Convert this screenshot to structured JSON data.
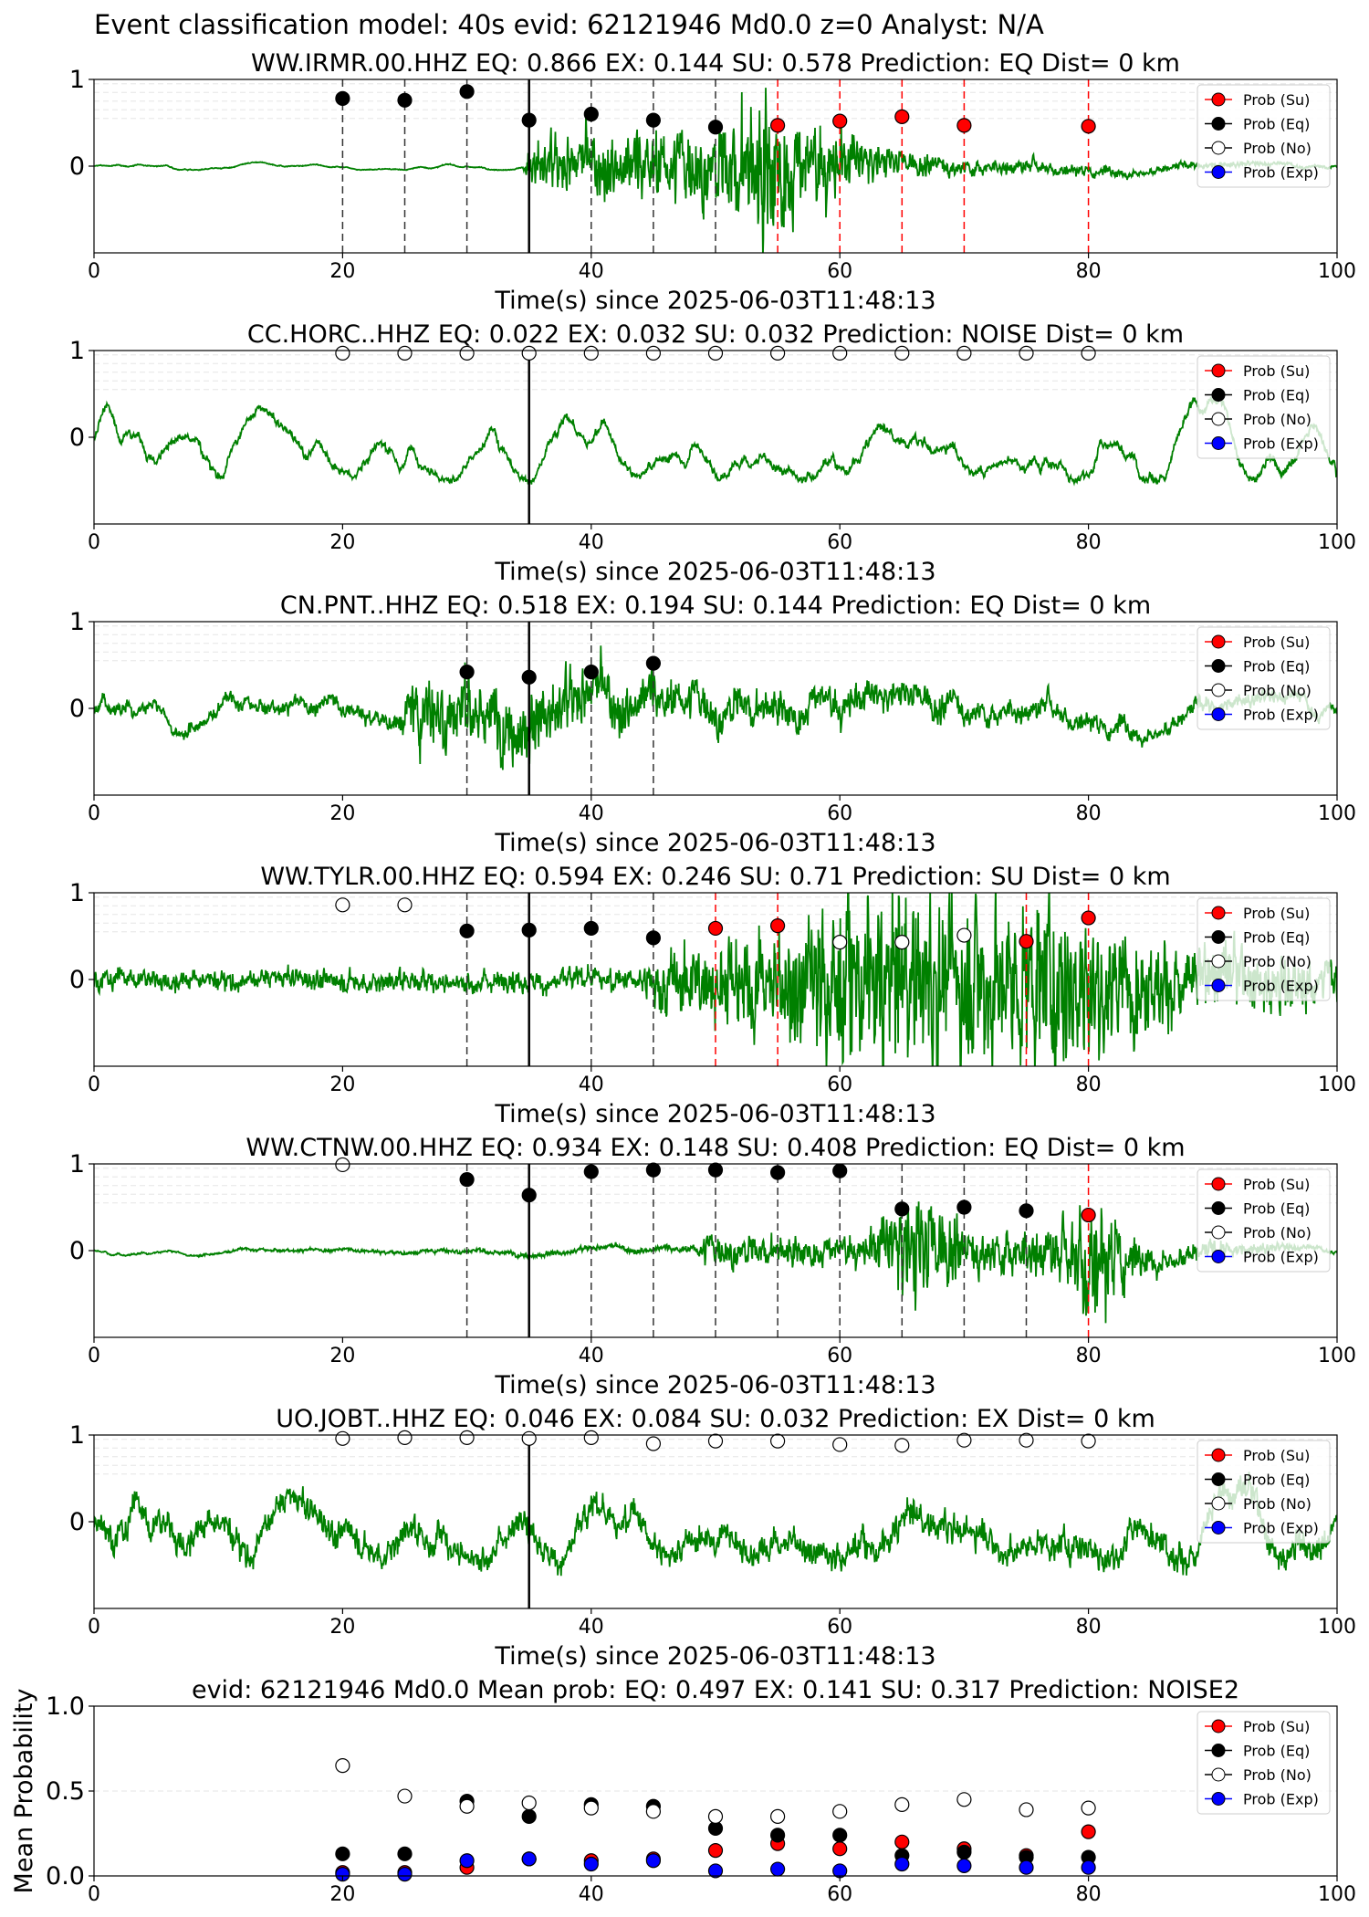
{
  "suptitle": "Event classification model: 40s evid: 62121946 Md0.0 z=0 Analyst: N/A",
  "colors": {
    "waveform": "#008000",
    "su": "#ff0000",
    "eq": "#000000",
    "no": "#ffffff",
    "exp": "#0000ff",
    "pick_line": "#000000",
    "su_line": "#ff0000"
  },
  "legend": {
    "placement": "top-right",
    "entries": [
      "Prob (Su)",
      "Prob (Eq)",
      "Prob (No)",
      "Prob (Exp)"
    ]
  },
  "chart_data": [
    {
      "type": "line",
      "title": "WW.IRMR.00.HHZ   EQ: 0.866  EX: 0.144  SU: 0.578   Prediction: EQ    Dist= 0 km",
      "xlabel": "Time(s) since 2025-06-03T11:48:13",
      "xlim": [
        0,
        100
      ],
      "xticks": [
        0,
        20,
        40,
        60,
        80,
        100
      ],
      "ylim": [
        -1,
        1
      ],
      "yticks": [
        0,
        1
      ],
      "origin_line": 35,
      "waveform_profile": [
        {
          "t": 0,
          "amp": 0.04,
          "smooth": 0.9
        },
        {
          "t": 34.5,
          "amp": 0.04,
          "smooth": 0.9
        },
        {
          "t": 35,
          "amp": 0.3,
          "smooth": 0.2
        },
        {
          "t": 50,
          "amp": 0.45,
          "smooth": 0.2
        },
        {
          "t": 54,
          "amp": 0.9,
          "smooth": 0.2
        },
        {
          "t": 57,
          "amp": 0.5,
          "smooth": 0.2
        },
        {
          "t": 66,
          "amp": 0.18,
          "smooth": 0.5
        },
        {
          "t": 100,
          "amp": 0.05,
          "smooth": 0.8
        }
      ],
      "series": [
        {
          "name": "Prob (Su)",
          "key": "su",
          "x": [
            55,
            60,
            65,
            70,
            80
          ],
          "y": [
            0.47,
            0.52,
            0.57,
            0.47,
            0.46
          ]
        },
        {
          "name": "Prob (Eq)",
          "key": "eq",
          "x": [
            20,
            25,
            30,
            35,
            40,
            45,
            50
          ],
          "y": [
            0.78,
            0.76,
            0.86,
            0.53,
            0.6,
            0.53,
            0.45
          ]
        },
        {
          "name": "Prob (No)",
          "key": "no",
          "x": [],
          "y": []
        },
        {
          "name": "Prob (Exp)",
          "key": "exp",
          "x": [],
          "y": []
        }
      ],
      "pick_lines": [
        {
          "x": 20,
          "kind": "eq"
        },
        {
          "x": 25,
          "kind": "eq"
        },
        {
          "x": 30,
          "kind": "eq"
        },
        {
          "x": 40,
          "kind": "eq"
        },
        {
          "x": 45,
          "kind": "eq"
        },
        {
          "x": 50,
          "kind": "eq"
        },
        {
          "x": 55,
          "kind": "su"
        },
        {
          "x": 60,
          "kind": "su"
        },
        {
          "x": 65,
          "kind": "su"
        },
        {
          "x": 70,
          "kind": "su"
        },
        {
          "x": 80,
          "kind": "su"
        }
      ]
    },
    {
      "type": "line",
      "title": "CC.HORC..HHZ   EQ: 0.022  EX: 0.032  SU: 0.032   Prediction: NOISE    Dist= 0 km",
      "xlabel": "Time(s) since 2025-06-03T11:48:13",
      "xlim": [
        0,
        100
      ],
      "xticks": [
        0,
        20,
        40,
        60,
        80,
        100
      ],
      "ylim": [
        -1,
        1
      ],
      "yticks": [
        0,
        1
      ],
      "origin_line": 35,
      "waveform_profile": [
        {
          "t": 0,
          "amp": 0.45,
          "smooth": 0.92
        },
        {
          "t": 100,
          "amp": 0.45,
          "smooth": 0.92
        }
      ],
      "series": [
        {
          "name": "Prob (Su)",
          "key": "su",
          "x": [],
          "y": []
        },
        {
          "name": "Prob (Eq)",
          "key": "eq",
          "x": [],
          "y": []
        },
        {
          "name": "Prob (No)",
          "key": "no",
          "x": [
            20,
            25,
            30,
            35,
            40,
            45,
            50,
            55,
            60,
            65,
            70,
            75,
            80
          ],
          "y": [
            0.97,
            0.97,
            0.97,
            0.97,
            0.97,
            0.97,
            0.97,
            0.97,
            0.97,
            0.97,
            0.97,
            0.97,
            0.97
          ]
        },
        {
          "name": "Prob (Exp)",
          "key": "exp",
          "x": [],
          "y": []
        }
      ],
      "pick_lines": []
    },
    {
      "type": "line",
      "title": "CN.PNT..HHZ   EQ: 0.518  EX: 0.194  SU: 0.144   Prediction: EQ    Dist= 0 km",
      "xlabel": "Time(s) since 2025-06-03T11:48:13",
      "xlim": [
        0,
        100
      ],
      "xticks": [
        0,
        20,
        40,
        60,
        80,
        100
      ],
      "ylim": [
        -1,
        1
      ],
      "yticks": [
        0,
        1
      ],
      "origin_line": 35,
      "waveform_profile": [
        {
          "t": 0,
          "amp": 0.35,
          "smooth": 0.85
        },
        {
          "t": 24,
          "amp": 0.35,
          "smooth": 0.8
        },
        {
          "t": 26,
          "amp": 0.55,
          "smooth": 0.4
        },
        {
          "t": 37,
          "amp": 0.5,
          "smooth": 0.4
        },
        {
          "t": 46,
          "amp": 0.45,
          "smooth": 0.6
        },
        {
          "t": 100,
          "amp": 0.3,
          "smooth": 0.85
        }
      ],
      "series": [
        {
          "name": "Prob (Su)",
          "key": "su",
          "x": [],
          "y": []
        },
        {
          "name": "Prob (Eq)",
          "key": "eq",
          "x": [
            30,
            35,
            40,
            45
          ],
          "y": [
            0.42,
            0.36,
            0.42,
            0.52
          ]
        },
        {
          "name": "Prob (No)",
          "key": "no",
          "x": [],
          "y": []
        },
        {
          "name": "Prob (Exp)",
          "key": "exp",
          "x": [],
          "y": []
        }
      ],
      "pick_lines": [
        {
          "x": 30,
          "kind": "eq"
        },
        {
          "x": 40,
          "kind": "eq"
        },
        {
          "x": 45,
          "kind": "eq"
        }
      ]
    },
    {
      "type": "line",
      "title": "WW.TYLR.00.HHZ   EQ: 0.594  EX: 0.246  SU: 0.71   Prediction: SU    Dist= 0 km",
      "xlabel": "Time(s) since 2025-06-03T11:48:13",
      "xlim": [
        0,
        100
      ],
      "xticks": [
        0,
        20,
        40,
        60,
        80,
        100
      ],
      "ylim": [
        -1,
        1
      ],
      "yticks": [
        0,
        1
      ],
      "origin_line": 35,
      "waveform_profile": [
        {
          "t": 0,
          "amp": 0.12,
          "smooth": 0.3
        },
        {
          "t": 44,
          "amp": 0.15,
          "smooth": 0.3
        },
        {
          "t": 45,
          "amp": 0.35,
          "smooth": 0.2
        },
        {
          "t": 55,
          "amp": 0.6,
          "smooth": 0.15
        },
        {
          "t": 60,
          "amp": 0.85,
          "smooth": 0.1
        },
        {
          "t": 78,
          "amp": 0.85,
          "smooth": 0.1
        },
        {
          "t": 86,
          "amp": 0.45,
          "smooth": 0.2
        },
        {
          "t": 100,
          "amp": 0.3,
          "smooth": 0.3
        }
      ],
      "series": [
        {
          "name": "Prob (Su)",
          "key": "su",
          "x": [
            50,
            55,
            75,
            80
          ],
          "y": [
            0.59,
            0.62,
            0.44,
            0.71
          ]
        },
        {
          "name": "Prob (Eq)",
          "key": "eq",
          "x": [
            30,
            35,
            40,
            45
          ],
          "y": [
            0.56,
            0.57,
            0.59,
            0.48
          ]
        },
        {
          "name": "Prob (No)",
          "key": "no",
          "x": [
            20,
            25,
            60,
            65,
            70
          ],
          "y": [
            0.86,
            0.86,
            0.43,
            0.43,
            0.51
          ]
        },
        {
          "name": "Prob (Exp)",
          "key": "exp",
          "x": [],
          "y": []
        }
      ],
      "pick_lines": [
        {
          "x": 30,
          "kind": "eq"
        },
        {
          "x": 40,
          "kind": "eq"
        },
        {
          "x": 45,
          "kind": "eq"
        },
        {
          "x": 50,
          "kind": "su"
        },
        {
          "x": 55,
          "kind": "su"
        },
        {
          "x": 75,
          "kind": "su"
        },
        {
          "x": 80,
          "kind": "su"
        }
      ]
    },
    {
      "type": "line",
      "title": "WW.CTNW.00.HHZ   EQ: 0.934  EX: 0.148  SU: 0.408   Prediction: EQ    Dist= 0 km",
      "xlabel": "Time(s) since 2025-06-03T11:48:13",
      "xlim": [
        0,
        100
      ],
      "xticks": [
        0,
        20,
        40,
        60,
        80,
        100
      ],
      "ylim": [
        -1,
        1
      ],
      "yticks": [
        0,
        1
      ],
      "origin_line": 35,
      "waveform_profile": [
        {
          "t": 0,
          "amp": 0.06,
          "smooth": 0.9
        },
        {
          "t": 48,
          "amp": 0.07,
          "smooth": 0.6
        },
        {
          "t": 49,
          "amp": 0.2,
          "smooth": 0.3
        },
        {
          "t": 62,
          "amp": 0.18,
          "smooth": 0.3
        },
        {
          "t": 64,
          "amp": 0.45,
          "smooth": 0.3
        },
        {
          "t": 66,
          "amp": 0.7,
          "smooth": 0.2
        },
        {
          "t": 70,
          "amp": 0.3,
          "smooth": 0.3
        },
        {
          "t": 78,
          "amp": 0.35,
          "smooth": 0.3
        },
        {
          "t": 80,
          "amp": 0.85,
          "smooth": 0.2
        },
        {
          "t": 84,
          "amp": 0.25,
          "smooth": 0.4
        },
        {
          "t": 100,
          "amp": 0.06,
          "smooth": 0.8
        }
      ],
      "series": [
        {
          "name": "Prob (Su)",
          "key": "su",
          "x": [
            80
          ],
          "y": [
            0.41
          ]
        },
        {
          "name": "Prob (Eq)",
          "key": "eq",
          "x": [
            30,
            35,
            40,
            45,
            50,
            55,
            60,
            65,
            70,
            75
          ],
          "y": [
            0.82,
            0.64,
            0.91,
            0.93,
            0.93,
            0.9,
            0.92,
            0.48,
            0.5,
            0.46
          ]
        },
        {
          "name": "Prob (No)",
          "key": "no",
          "x": [
            20
          ],
          "y": [
            0.99
          ]
        },
        {
          "name": "Prob (Exp)",
          "key": "exp",
          "x": [],
          "y": []
        }
      ],
      "pick_lines": [
        {
          "x": 30,
          "kind": "eq"
        },
        {
          "x": 40,
          "kind": "eq"
        },
        {
          "x": 45,
          "kind": "eq"
        },
        {
          "x": 50,
          "kind": "eq"
        },
        {
          "x": 55,
          "kind": "eq"
        },
        {
          "x": 60,
          "kind": "eq"
        },
        {
          "x": 65,
          "kind": "eq"
        },
        {
          "x": 70,
          "kind": "eq"
        },
        {
          "x": 75,
          "kind": "eq"
        },
        {
          "x": 80,
          "kind": "su"
        }
      ]
    },
    {
      "type": "line",
      "title": "UO.JOBT..HHZ   EQ: 0.046  EX: 0.084  SU: 0.032   Prediction: EX    Dist= 0 km",
      "xlabel": "Time(s) since 2025-06-03T11:48:13",
      "xlim": [
        0,
        100
      ],
      "xticks": [
        0,
        20,
        40,
        60,
        80,
        100
      ],
      "ylim": [
        -1,
        1
      ],
      "yticks": [
        0,
        1
      ],
      "origin_line": 35,
      "waveform_profile": [
        {
          "t": 0,
          "amp": 0.5,
          "smooth": 0.75
        },
        {
          "t": 100,
          "amp": 0.5,
          "smooth": 0.75
        }
      ],
      "series": [
        {
          "name": "Prob (Su)",
          "key": "su",
          "x": [],
          "y": []
        },
        {
          "name": "Prob (Eq)",
          "key": "eq",
          "x": [],
          "y": []
        },
        {
          "name": "Prob (No)",
          "key": "no",
          "x": [
            20,
            25,
            30,
            35,
            40,
            45,
            50,
            55,
            60,
            65,
            70,
            75,
            80
          ],
          "y": [
            0.96,
            0.97,
            0.97,
            0.96,
            0.97,
            0.9,
            0.93,
            0.93,
            0.89,
            0.88,
            0.94,
            0.94,
            0.93
          ]
        },
        {
          "name": "Prob (Exp)",
          "key": "exp",
          "x": [],
          "y": []
        }
      ],
      "pick_lines": []
    },
    {
      "type": "scatter",
      "title": "evid: 62121946  Md0.0   Mean prob:   EQ: 0.497  EX: 0.141  SU: 0.317   Prediction: NOISE2",
      "xlabel": "",
      "ylabel": "Mean Probability",
      "xlim": [
        0,
        100
      ],
      "xticks": [
        0,
        20,
        40,
        60,
        80,
        100
      ],
      "ylim": [
        0,
        1
      ],
      "yticks": [
        0.0,
        0.5,
        1.0
      ],
      "ytick_labels": [
        "0.0",
        "0.5",
        "1.0"
      ],
      "series": [
        {
          "name": "Prob (Su)",
          "key": "su",
          "x": [
            20,
            25,
            30,
            35,
            40,
            45,
            50,
            55,
            60,
            65,
            70,
            75,
            80
          ],
          "y": [
            0.02,
            0.02,
            0.05,
            0.1,
            0.09,
            0.1,
            0.15,
            0.19,
            0.16,
            0.2,
            0.16,
            0.12,
            0.26
          ]
        },
        {
          "name": "Prob (Eq)",
          "key": "eq",
          "x": [
            20,
            25,
            30,
            35,
            40,
            45,
            50,
            55,
            60,
            65,
            70,
            75,
            80
          ],
          "y": [
            0.13,
            0.13,
            0.44,
            0.35,
            0.42,
            0.41,
            0.28,
            0.24,
            0.24,
            0.12,
            0.14,
            0.11,
            0.11
          ]
        },
        {
          "name": "Prob (No)",
          "key": "no",
          "x": [
            20,
            25,
            30,
            35,
            40,
            45,
            50,
            55,
            60,
            65,
            70,
            75,
            80
          ],
          "y": [
            0.65,
            0.47,
            0.41,
            0.43,
            0.4,
            0.38,
            0.35,
            0.35,
            0.38,
            0.42,
            0.45,
            0.39,
            0.4
          ]
        },
        {
          "name": "Prob (Exp)",
          "key": "exp",
          "x": [
            20,
            25,
            30,
            35,
            40,
            45,
            50,
            55,
            60,
            65,
            70,
            75,
            80
          ],
          "y": [
            0.01,
            0.01,
            0.09,
            0.1,
            0.07,
            0.09,
            0.03,
            0.04,
            0.03,
            0.07,
            0.06,
            0.05,
            0.05
          ]
        }
      ]
    }
  ]
}
